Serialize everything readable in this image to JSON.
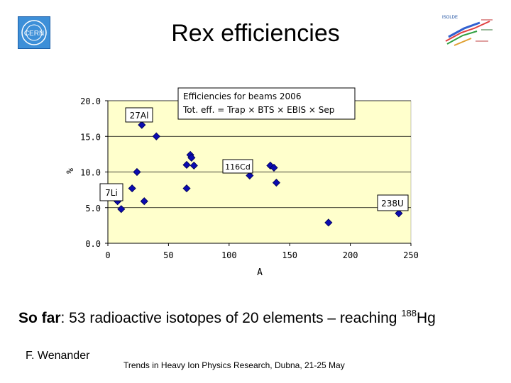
{
  "slide": {
    "title": "Rex efficiencies",
    "bottom_bold": "So far",
    "bottom_rest": ": 53 radioactive isotopes of 20 elements – reaching ",
    "bottom_sup": "188",
    "bottom_elem": "Hg",
    "author": "F. Wenander",
    "footer": "Trends in Heavy Ion Physics Research, Dubna, 21-25 May"
  },
  "logos": {
    "left": "CERN",
    "right": "ISOLDE"
  },
  "colors": {
    "plot_bg": "#FFFFCC",
    "marker": "#0B0BB0",
    "marker_edge": "#000050",
    "logo_blue": "#2a7fd0"
  },
  "chart_data": {
    "type": "scatter",
    "xlabel": "A",
    "ylabel": "%",
    "xlim": [
      0,
      250
    ],
    "ylim": [
      0,
      20
    ],
    "xticks": [
      "0",
      "50",
      "100",
      "150",
      "200",
      "250"
    ],
    "yticks": [
      "0.0",
      "5.0",
      "10.0",
      "15.0",
      "20.0"
    ],
    "grid": "horizontal",
    "series": [
      {
        "points": [
          [
            8,
            5.9
          ],
          [
            11,
            4.8
          ],
          [
            20,
            7.7
          ],
          [
            24,
            10.0
          ],
          [
            28,
            16.6
          ],
          [
            30,
            5.9
          ],
          [
            40,
            15.0
          ],
          [
            65,
            11.0
          ],
          [
            65,
            7.7
          ],
          [
            68,
            12.4
          ],
          [
            69,
            12.0
          ],
          [
            71,
            10.9
          ],
          [
            117,
            9.5
          ],
          [
            134,
            10.9
          ],
          [
            137,
            10.6
          ],
          [
            139,
            8.5
          ],
          [
            182,
            2.9
          ],
          [
            240,
            4.2
          ]
        ]
      }
    ],
    "labels": [
      "27Al",
      "116Cd",
      "7Li",
      "238U"
    ],
    "annotation_lines": [
      "Efficiencies for beams 2006",
      "Tot. eff. = Trap × BTS × EBIS × Sep"
    ]
  }
}
